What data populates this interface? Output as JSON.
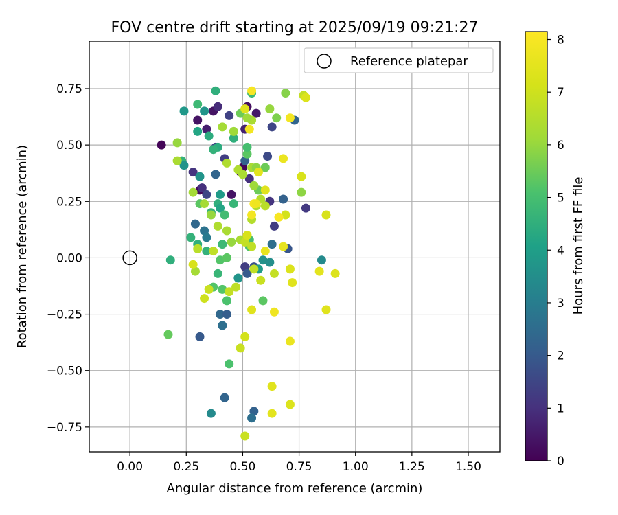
{
  "chart_data": {
    "type": "scatter",
    "title": "FOV centre drift starting at 2025/09/19 09:21:27",
    "xlabel": "Angular distance from reference (arcmin)",
    "ylabel": "Rotation from reference (arcmin)",
    "xlim": [
      -0.18,
      1.64
    ],
    "ylim": [
      -0.86,
      0.96
    ],
    "xticks": [
      "0.00",
      "0.25",
      "0.50",
      "0.75",
      "1.00",
      "1.25",
      "1.50"
    ],
    "yticks": [
      "−0.75",
      "−0.50",
      "−0.25",
      "0.00",
      "0.25",
      "0.50",
      "0.75"
    ],
    "grid": true,
    "legend": {
      "location": "top-right",
      "entries": [
        "Reference platepar"
      ]
    },
    "reference_point": {
      "x": 0.0,
      "y": 0.0,
      "label": "Reference platepar"
    },
    "colorbar": {
      "label": "Hours from first FF file",
      "colormap": "viridis",
      "range": [
        0,
        8.15
      ],
      "ticks": [
        "0",
        "1",
        "2",
        "3",
        "4",
        "5",
        "6",
        "7",
        "8"
      ]
    },
    "points": [
      {
        "x": 0.14,
        "y": 0.5,
        "h": 0.1
      },
      {
        "x": 0.3,
        "y": 0.61,
        "h": 0.4
      },
      {
        "x": 0.34,
        "y": 0.57,
        "h": 0.6
      },
      {
        "x": 0.37,
        "y": 0.65,
        "h": 0.4
      },
      {
        "x": 0.39,
        "y": 0.67,
        "h": 0.9
      },
      {
        "x": 0.42,
        "y": 0.44,
        "h": 1.3
      },
      {
        "x": 0.44,
        "y": 0.63,
        "h": 1.4
      },
      {
        "x": 0.49,
        "y": 0.38,
        "h": 0.2
      },
      {
        "x": 0.5,
        "y": 0.4,
        "h": 0.1
      },
      {
        "x": 0.51,
        "y": 0.57,
        "h": 0.7
      },
      {
        "x": 0.52,
        "y": 0.67,
        "h": 0.3
      },
      {
        "x": 0.56,
        "y": 0.64,
        "h": 0.5
      },
      {
        "x": 0.63,
        "y": 0.58,
        "h": 1.5
      },
      {
        "x": 0.61,
        "y": 0.45,
        "h": 1.6
      },
      {
        "x": 0.73,
        "y": 0.61,
        "h": 2.3
      },
      {
        "x": 0.78,
        "y": 0.22,
        "h": 1.2
      },
      {
        "x": 0.31,
        "y": 0.3,
        "h": 0.2
      },
      {
        "x": 0.32,
        "y": 0.31,
        "h": 1.0
      },
      {
        "x": 0.34,
        "y": 0.28,
        "h": 1.5
      },
      {
        "x": 0.38,
        "y": 0.49,
        "h": 1.4
      },
      {
        "x": 0.45,
        "y": 0.28,
        "h": 0.4
      },
      {
        "x": 0.28,
        "y": 0.38,
        "h": 1.1
      },
      {
        "x": 0.53,
        "y": 0.35,
        "h": 1.0
      },
      {
        "x": 0.64,
        "y": 0.14,
        "h": 1.3
      },
      {
        "x": 0.62,
        "y": 0.25,
        "h": 1.1
      },
      {
        "x": 0.51,
        "y": -0.04,
        "h": 1.3
      },
      {
        "x": 0.55,
        "y": -0.04,
        "h": 1.8
      },
      {
        "x": 0.52,
        "y": -0.07,
        "h": 2.0
      },
      {
        "x": 0.7,
        "y": 0.04,
        "h": 1.9
      },
      {
        "x": 0.63,
        "y": 0.06,
        "h": 2.6
      },
      {
        "x": 0.68,
        "y": 0.26,
        "h": 2.2
      },
      {
        "x": 0.51,
        "y": 0.43,
        "h": 2.2
      },
      {
        "x": 0.38,
        "y": 0.37,
        "h": 2.3
      },
      {
        "x": 0.33,
        "y": 0.12,
        "h": 2.7
      },
      {
        "x": 0.34,
        "y": 0.09,
        "h": 2.9
      },
      {
        "x": 0.29,
        "y": 0.15,
        "h": 2.4
      },
      {
        "x": 0.4,
        "y": -0.25,
        "h": 2.4
      },
      {
        "x": 0.43,
        "y": -0.25,
        "h": 2.1
      },
      {
        "x": 0.41,
        "y": -0.3,
        "h": 2.6
      },
      {
        "x": 0.31,
        "y": -0.35,
        "h": 2.0
      },
      {
        "x": 0.42,
        "y": -0.62,
        "h": 2.3
      },
      {
        "x": 0.55,
        "y": -0.68,
        "h": 2.2
      },
      {
        "x": 0.54,
        "y": -0.71,
        "h": 2.6
      },
      {
        "x": 0.36,
        "y": -0.69,
        "h": 3.4
      },
      {
        "x": 0.85,
        "y": -0.01,
        "h": 3.4
      },
      {
        "x": 0.59,
        "y": -0.01,
        "h": 3.6
      },
      {
        "x": 0.62,
        "y": -0.02,
        "h": 3.5
      },
      {
        "x": 0.57,
        "y": -0.05,
        "h": 3.9
      },
      {
        "x": 0.48,
        "y": -0.09,
        "h": 3.7
      },
      {
        "x": 0.33,
        "y": 0.65,
        "h": 3.7
      },
      {
        "x": 0.24,
        "y": 0.65,
        "h": 3.8
      },
      {
        "x": 0.38,
        "y": 0.74,
        "h": 4.5
      },
      {
        "x": 0.3,
        "y": 0.68,
        "h": 4.8
      },
      {
        "x": 0.35,
        "y": 0.54,
        "h": 4.4
      },
      {
        "x": 0.3,
        "y": 0.56,
        "h": 4.2
      },
      {
        "x": 0.23,
        "y": 0.43,
        "h": 4.6
      },
      {
        "x": 0.24,
        "y": 0.41,
        "h": 3.7
      },
      {
        "x": 0.31,
        "y": 0.36,
        "h": 3.7
      },
      {
        "x": 0.4,
        "y": 0.28,
        "h": 3.9
      },
      {
        "x": 0.39,
        "y": 0.24,
        "h": 4.5
      },
      {
        "x": 0.4,
        "y": 0.22,
        "h": 4.2
      },
      {
        "x": 0.46,
        "y": 0.24,
        "h": 4.7
      },
      {
        "x": 0.42,
        "y": 0.19,
        "h": 4.9
      },
      {
        "x": 0.36,
        "y": 0.2,
        "h": 4.6
      },
      {
        "x": 0.31,
        "y": 0.24,
        "h": 5.3
      },
      {
        "x": 0.27,
        "y": 0.09,
        "h": 4.6
      },
      {
        "x": 0.3,
        "y": 0.06,
        "h": 4.5
      },
      {
        "x": 0.34,
        "y": 0.03,
        "h": 4.6
      },
      {
        "x": 0.41,
        "y": 0.06,
        "h": 4.8
      },
      {
        "x": 0.4,
        "y": -0.01,
        "h": 5.2
      },
      {
        "x": 0.43,
        "y": 0.0,
        "h": 5.3
      },
      {
        "x": 0.18,
        "y": -0.01,
        "h": 4.5
      },
      {
        "x": 0.39,
        "y": -0.07,
        "h": 4.7
      },
      {
        "x": 0.37,
        "y": -0.13,
        "h": 5.2
      },
      {
        "x": 0.41,
        "y": -0.14,
        "h": 5.2
      },
      {
        "x": 0.43,
        "y": -0.19,
        "h": 5.1
      },
      {
        "x": 0.44,
        "y": -0.47,
        "h": 5.1
      },
      {
        "x": 0.17,
        "y": -0.34,
        "h": 5.4
      },
      {
        "x": 0.59,
        "y": -0.19,
        "h": 5.3
      },
      {
        "x": 0.39,
        "y": 0.49,
        "h": 4.4
      },
      {
        "x": 0.37,
        "y": 0.48,
        "h": 4.6
      },
      {
        "x": 0.52,
        "y": 0.46,
        "h": 5.3
      },
      {
        "x": 0.54,
        "y": 0.73,
        "h": 4.8
      },
      {
        "x": 0.49,
        "y": 0.64,
        "h": 5.5
      },
      {
        "x": 0.46,
        "y": 0.53,
        "h": 4.5
      },
      {
        "x": 0.52,
        "y": 0.49,
        "h": 5.0
      },
      {
        "x": 0.6,
        "y": 0.4,
        "h": 5.5
      },
      {
        "x": 0.57,
        "y": 0.3,
        "h": 5.5
      },
      {
        "x": 0.53,
        "y": 0.08,
        "h": 5.0
      },
      {
        "x": 0.53,
        "y": 0.05,
        "h": 5.1
      },
      {
        "x": 0.62,
        "y": 0.66,
        "h": 6.0
      },
      {
        "x": 0.69,
        "y": 0.73,
        "h": 5.8
      },
      {
        "x": 0.65,
        "y": 0.62,
        "h": 5.7
      },
      {
        "x": 0.76,
        "y": 0.29,
        "h": 5.9
      },
      {
        "x": 0.21,
        "y": 0.51,
        "h": 6.0
      },
      {
        "x": 0.21,
        "y": 0.43,
        "h": 6.3
      },
      {
        "x": 0.41,
        "y": 0.58,
        "h": 6.2
      },
      {
        "x": 0.46,
        "y": 0.56,
        "h": 6.1
      },
      {
        "x": 0.43,
        "y": 0.42,
        "h": 6.4
      },
      {
        "x": 0.54,
        "y": 0.61,
        "h": 6.3
      },
      {
        "x": 0.52,
        "y": 0.62,
        "h": 6.1
      },
      {
        "x": 0.48,
        "y": 0.39,
        "h": 6.4
      },
      {
        "x": 0.5,
        "y": 0.37,
        "h": 6.3
      },
      {
        "x": 0.54,
        "y": 0.4,
        "h": 6.3
      },
      {
        "x": 0.56,
        "y": 0.4,
        "h": 5.9
      },
      {
        "x": 0.55,
        "y": 0.32,
        "h": 6.1
      },
      {
        "x": 0.28,
        "y": 0.29,
        "h": 6.2
      },
      {
        "x": 0.33,
        "y": 0.24,
        "h": 6.2
      },
      {
        "x": 0.36,
        "y": 0.19,
        "h": 6.0
      },
      {
        "x": 0.39,
        "y": 0.14,
        "h": 6.4
      },
      {
        "x": 0.43,
        "y": 0.12,
        "h": 6.3
      },
      {
        "x": 0.45,
        "y": 0.07,
        "h": 6.0
      },
      {
        "x": 0.54,
        "y": 0.17,
        "h": 6.5
      },
      {
        "x": 0.56,
        "y": 0.23,
        "h": 6.4
      },
      {
        "x": 0.58,
        "y": 0.26,
        "h": 6.5
      },
      {
        "x": 0.6,
        "y": 0.23,
        "h": 6.6
      },
      {
        "x": 0.3,
        "y": 0.04,
        "h": 6.6
      },
      {
        "x": 0.37,
        "y": 0.03,
        "h": 6.7
      },
      {
        "x": 0.49,
        "y": 0.08,
        "h": 6.3
      },
      {
        "x": 0.51,
        "y": 0.07,
        "h": 6.8
      },
      {
        "x": 0.54,
        "y": 0.05,
        "h": 6.7
      },
      {
        "x": 0.29,
        "y": -0.06,
        "h": 6.2
      },
      {
        "x": 0.55,
        "y": -0.05,
        "h": 6.7
      },
      {
        "x": 0.58,
        "y": -0.1,
        "h": 6.9
      },
      {
        "x": 0.64,
        "y": -0.07,
        "h": 6.8
      },
      {
        "x": 0.47,
        "y": -0.13,
        "h": 6.7
      },
      {
        "x": 0.44,
        "y": -0.15,
        "h": 6.8
      },
      {
        "x": 0.35,
        "y": -0.14,
        "h": 6.9
      },
      {
        "x": 0.33,
        "y": -0.18,
        "h": 7.0
      },
      {
        "x": 0.49,
        "y": -0.4,
        "h": 6.9
      },
      {
        "x": 0.51,
        "y": -0.35,
        "h": 7.1
      },
      {
        "x": 0.51,
        "y": -0.79,
        "h": 6.9
      },
      {
        "x": 0.28,
        "y": -0.03,
        "h": 7.2
      },
      {
        "x": 0.52,
        "y": 0.1,
        "h": 7.2
      },
      {
        "x": 0.51,
        "y": 0.66,
        "h": 7.4
      },
      {
        "x": 0.77,
        "y": 0.72,
        "h": 6.8
      },
      {
        "x": 0.78,
        "y": 0.71,
        "h": 7.3
      },
      {
        "x": 0.66,
        "y": 0.18,
        "h": 7.6
      },
      {
        "x": 0.69,
        "y": 0.19,
        "h": 7.1
      },
      {
        "x": 0.76,
        "y": 0.36,
        "h": 7.2
      },
      {
        "x": 0.87,
        "y": 0.19,
        "h": 7.2
      },
      {
        "x": 0.71,
        "y": -0.05,
        "h": 7.3
      },
      {
        "x": 0.72,
        "y": -0.11,
        "h": 7.4
      },
      {
        "x": 0.84,
        "y": -0.06,
        "h": 7.5
      },
      {
        "x": 0.91,
        "y": -0.07,
        "h": 7.3
      },
      {
        "x": 0.87,
        "y": -0.23,
        "h": 7.4
      },
      {
        "x": 0.54,
        "y": -0.23,
        "h": 7.4
      },
      {
        "x": 0.64,
        "y": -0.24,
        "h": 7.8
      },
      {
        "x": 0.71,
        "y": -0.37,
        "h": 7.7
      },
      {
        "x": 0.63,
        "y": -0.57,
        "h": 7.4
      },
      {
        "x": 0.63,
        "y": -0.69,
        "h": 7.5
      },
      {
        "x": 0.71,
        "y": -0.65,
        "h": 7.3
      },
      {
        "x": 0.68,
        "y": 0.44,
        "h": 7.7
      },
      {
        "x": 0.57,
        "y": 0.38,
        "h": 7.5
      },
      {
        "x": 0.6,
        "y": 0.3,
        "h": 7.4
      },
      {
        "x": 0.6,
        "y": 0.03,
        "h": 7.6
      },
      {
        "x": 0.68,
        "y": 0.05,
        "h": 7.6
      },
      {
        "x": 0.53,
        "y": 0.57,
        "h": 7.9
      },
      {
        "x": 0.71,
        "y": 0.62,
        "h": 7.9
      },
      {
        "x": 0.54,
        "y": 0.74,
        "h": 8.0
      },
      {
        "x": 0.55,
        "y": 0.24,
        "h": 8.0
      },
      {
        "x": 0.66,
        "y": 0.18,
        "h": 8.0
      },
      {
        "x": 0.54,
        "y": 0.19,
        "h": 7.9
      },
      {
        "x": 0.56,
        "y": 0.24,
        "h": 7.8
      }
    ]
  }
}
